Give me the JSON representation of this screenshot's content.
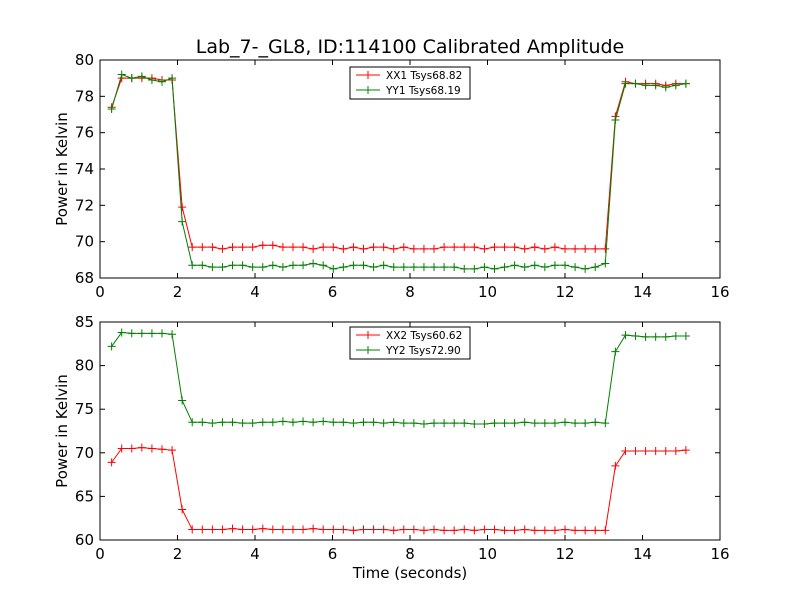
{
  "title": "Lab_7-_GL8, ID:114100 Calibrated Amplitude",
  "chart_data": [
    {
      "type": "line",
      "ylabel": "Power in Kelvin",
      "xlabel": "",
      "xlim": [
        0,
        16
      ],
      "ylim": [
        68,
        80
      ],
      "xticks": [
        "0",
        "2",
        "4",
        "6",
        "8",
        "10",
        "12",
        "14",
        "16"
      ],
      "yticks": [
        "68",
        "70",
        "72",
        "74",
        "76",
        "78",
        "80"
      ],
      "legend_position": "top-center",
      "series": [
        {
          "name": "XX1 Tsys68.82",
          "color": "#ff0000",
          "x": [
            0.3,
            0.56,
            0.82,
            1.08,
            1.34,
            1.6,
            1.86,
            2.12,
            2.38,
            2.64,
            2.9,
            3.16,
            3.42,
            3.68,
            3.94,
            4.2,
            4.46,
            4.72,
            4.98,
            5.24,
            5.5,
            5.76,
            6.02,
            6.28,
            6.54,
            6.8,
            7.06,
            7.32,
            7.58,
            7.84,
            8.1,
            8.36,
            8.62,
            8.88,
            9.14,
            9.4,
            9.66,
            9.92,
            10.18,
            10.44,
            10.7,
            10.96,
            11.22,
            11.48,
            11.74,
            12.0,
            12.26,
            12.52,
            12.78,
            13.04,
            13.3,
            13.56,
            13.82,
            14.08,
            14.34,
            14.6,
            14.86,
            15.12
          ],
          "values": [
            77.4,
            79.0,
            79.0,
            79.0,
            79.0,
            78.9,
            78.9,
            71.9,
            69.7,
            69.7,
            69.7,
            69.6,
            69.7,
            69.7,
            69.7,
            69.8,
            69.8,
            69.7,
            69.7,
            69.7,
            69.6,
            69.7,
            69.7,
            69.6,
            69.7,
            69.6,
            69.7,
            69.7,
            69.6,
            69.7,
            69.6,
            69.6,
            69.6,
            69.7,
            69.7,
            69.7,
            69.7,
            69.6,
            69.7,
            69.7,
            69.7,
            69.6,
            69.7,
            69.6,
            69.7,
            69.6,
            69.6,
            69.6,
            69.6,
            69.6,
            76.9,
            78.8,
            78.7,
            78.7,
            78.7,
            78.6,
            78.7,
            78.7
          ]
        },
        {
          "name": "YY1 Tsys68.19",
          "color": "#008000",
          "x": [
            0.3,
            0.56,
            0.82,
            1.08,
            1.34,
            1.6,
            1.86,
            2.12,
            2.38,
            2.64,
            2.9,
            3.16,
            3.42,
            3.68,
            3.94,
            4.2,
            4.46,
            4.72,
            4.98,
            5.24,
            5.5,
            5.76,
            6.02,
            6.28,
            6.54,
            6.8,
            7.06,
            7.32,
            7.58,
            7.84,
            8.1,
            8.36,
            8.62,
            8.88,
            9.14,
            9.4,
            9.66,
            9.92,
            10.18,
            10.44,
            10.7,
            10.96,
            11.22,
            11.48,
            11.74,
            12.0,
            12.26,
            12.52,
            12.78,
            13.04,
            13.3,
            13.56,
            13.82,
            14.08,
            14.34,
            14.6,
            14.86,
            15.12
          ],
          "values": [
            77.3,
            79.2,
            79.0,
            79.1,
            78.9,
            78.8,
            79.0,
            71.1,
            68.7,
            68.7,
            68.6,
            68.6,
            68.7,
            68.7,
            68.6,
            68.6,
            68.7,
            68.6,
            68.7,
            68.7,
            68.8,
            68.7,
            68.5,
            68.6,
            68.7,
            68.7,
            68.6,
            68.7,
            68.6,
            68.6,
            68.6,
            68.6,
            68.6,
            68.6,
            68.6,
            68.5,
            68.5,
            68.6,
            68.5,
            68.6,
            68.7,
            68.6,
            68.7,
            68.6,
            68.7,
            68.7,
            68.6,
            68.5,
            68.6,
            68.8,
            76.7,
            78.7,
            78.7,
            78.6,
            78.6,
            78.5,
            78.6,
            78.7
          ]
        }
      ]
    },
    {
      "type": "line",
      "ylabel": "Power in Kelvin",
      "xlabel": "Time (seconds)",
      "xlim": [
        0,
        16
      ],
      "ylim": [
        60,
        85
      ],
      "xticks": [
        "0",
        "2",
        "4",
        "6",
        "8",
        "10",
        "12",
        "14",
        "16"
      ],
      "yticks": [
        "60",
        "65",
        "70",
        "75",
        "80",
        "85"
      ],
      "legend_position": "top-center",
      "series": [
        {
          "name": "XX2 Tsys60.62",
          "color": "#ff0000",
          "x": [
            0.3,
            0.56,
            0.82,
            1.08,
            1.34,
            1.6,
            1.86,
            2.12,
            2.38,
            2.64,
            2.9,
            3.16,
            3.42,
            3.68,
            3.94,
            4.2,
            4.46,
            4.72,
            4.98,
            5.24,
            5.5,
            5.76,
            6.02,
            6.28,
            6.54,
            6.8,
            7.06,
            7.32,
            7.58,
            7.84,
            8.1,
            8.36,
            8.62,
            8.88,
            9.14,
            9.4,
            9.66,
            9.92,
            10.18,
            10.44,
            10.7,
            10.96,
            11.22,
            11.48,
            11.74,
            12.0,
            12.26,
            12.52,
            12.78,
            13.04,
            13.3,
            13.56,
            13.82,
            14.08,
            14.34,
            14.6,
            14.86,
            15.12
          ],
          "values": [
            68.9,
            70.5,
            70.5,
            70.6,
            70.5,
            70.4,
            70.3,
            63.5,
            61.2,
            61.2,
            61.2,
            61.2,
            61.3,
            61.2,
            61.2,
            61.3,
            61.2,
            61.2,
            61.2,
            61.2,
            61.3,
            61.2,
            61.2,
            61.2,
            61.1,
            61.2,
            61.2,
            61.2,
            61.1,
            61.2,
            61.2,
            61.1,
            61.2,
            61.1,
            61.1,
            61.2,
            61.1,
            61.2,
            61.2,
            61.1,
            61.1,
            61.2,
            61.1,
            61.1,
            61.1,
            61.2,
            61.1,
            61.1,
            61.1,
            61.1,
            68.5,
            70.2,
            70.2,
            70.2,
            70.2,
            70.2,
            70.2,
            70.3
          ]
        },
        {
          "name": "YY2 Tsys72.90",
          "color": "#008000",
          "x": [
            0.3,
            0.56,
            0.82,
            1.08,
            1.34,
            1.6,
            1.86,
            2.12,
            2.38,
            2.64,
            2.9,
            3.16,
            3.42,
            3.68,
            3.94,
            4.2,
            4.46,
            4.72,
            4.98,
            5.24,
            5.5,
            5.76,
            6.02,
            6.28,
            6.54,
            6.8,
            7.06,
            7.32,
            7.58,
            7.84,
            8.1,
            8.36,
            8.62,
            8.88,
            9.14,
            9.4,
            9.66,
            9.92,
            10.18,
            10.44,
            10.7,
            10.96,
            11.22,
            11.48,
            11.74,
            12.0,
            12.26,
            12.52,
            12.78,
            13.04,
            13.3,
            13.56,
            13.82,
            14.08,
            14.34,
            14.6,
            14.86,
            15.12
          ],
          "values": [
            82.2,
            83.8,
            83.7,
            83.7,
            83.7,
            83.7,
            83.6,
            76.0,
            73.5,
            73.5,
            73.4,
            73.5,
            73.5,
            73.4,
            73.4,
            73.5,
            73.5,
            73.6,
            73.5,
            73.6,
            73.5,
            73.6,
            73.5,
            73.5,
            73.4,
            73.5,
            73.5,
            73.4,
            73.5,
            73.4,
            73.4,
            73.3,
            73.4,
            73.4,
            73.4,
            73.4,
            73.3,
            73.3,
            73.4,
            73.4,
            73.4,
            73.5,
            73.4,
            73.4,
            73.4,
            73.5,
            73.4,
            73.4,
            73.5,
            73.4,
            81.6,
            83.5,
            83.4,
            83.3,
            83.3,
            83.3,
            83.4,
            83.4
          ]
        }
      ]
    }
  ]
}
